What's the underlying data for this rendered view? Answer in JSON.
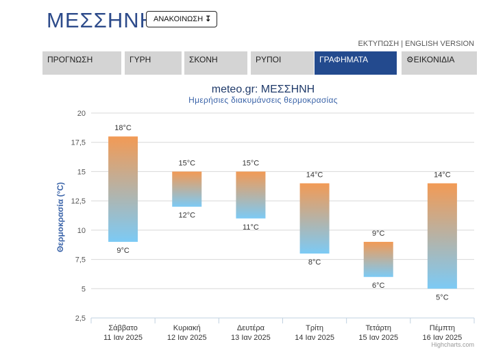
{
  "header": {
    "city": "ΜΕΣΣΗΝΗ",
    "announce_label": "ΑΝΑΚΟΙΝΩΣΗ",
    "announce_icon": "arrow-down-icon",
    "print_link": "ΕΚΤΥΠΩΣΗ",
    "separator": " | ",
    "english_link": "ENGLISH VERSION"
  },
  "nav": {
    "tabs": [
      {
        "label": "ΠΡΟΓΝΩΣΗ",
        "active": false
      },
      {
        "label": "ΓΥΡΗ",
        "active": false
      },
      {
        "label": "ΣΚΟΝΗ",
        "active": false
      },
      {
        "label": "ΡΥΠΟΙ",
        "active": false
      },
      {
        "label": "ΓΡΑΦΗΜΑΤΑ",
        "active": true
      },
      {
        "label": "ΕΙΚΟΝΙΔΙΑ",
        "active": false,
        "icon": "gear-icon"
      }
    ],
    "active_color": "#234a8e",
    "inactive_color": "#d4d4d4"
  },
  "chart_data": {
    "type": "bar",
    "subtype": "columnrange",
    "title": "meteo.gr: ΜΕΣΣΗΝΗ",
    "subtitle": "Ημερήσιες διακυμάνσεις θερμοκρασίας",
    "ylabel": "Θερμοκρασία (°C)",
    "ylim": [
      2.5,
      20
    ],
    "yticks": [
      "2,5",
      "5",
      "7,5",
      "10",
      "12,5",
      "15",
      "17,5",
      "20"
    ],
    "ytick_values": [
      2.5,
      5,
      7.5,
      10,
      12.5,
      15,
      17.5,
      20
    ],
    "categories": [
      [
        "Σάββατο",
        "11 Ιαν 2025"
      ],
      [
        "Κυριακή",
        "12 Ιαν 2025"
      ],
      [
        "Δευτέρα",
        "13 Ιαν 2025"
      ],
      [
        "Τρίτη",
        "14 Ιαν 2025"
      ],
      [
        "Τετάρτη",
        "15 Ιαν 2025"
      ],
      [
        "Πέμπτη",
        "16 Ιαν 2025"
      ]
    ],
    "low": [
      9,
      12,
      11,
      8,
      6,
      5
    ],
    "high": [
      18,
      15,
      15,
      14,
      9,
      14
    ],
    "low_labels": [
      "9°C",
      "12°C",
      "11°C",
      "8°C",
      "6°C",
      "5°C"
    ],
    "high_labels": [
      "18°C",
      "15°C",
      "15°C",
      "14°C",
      "9°C",
      "14°C"
    ],
    "grid": true,
    "legend": "none",
    "colors": {
      "warm": "#f29a55",
      "cold": "#7ccaf5",
      "title": "#1f3a6a",
      "subtitle": "#3a63a8",
      "ylabel": "#3a63a8"
    },
    "credits": "Highcharts.com"
  }
}
